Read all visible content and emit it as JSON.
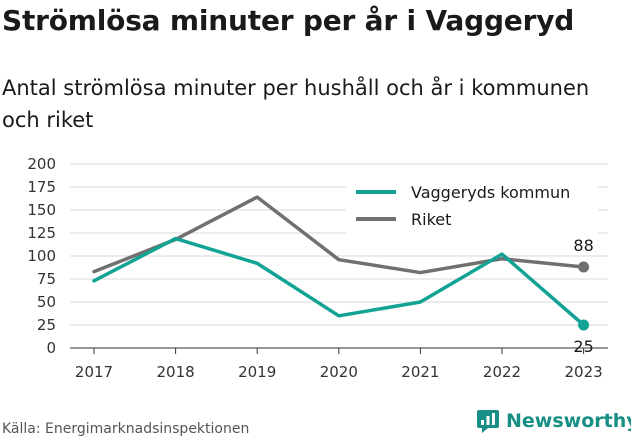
{
  "title": "Strömlösa minuter per år i Vaggeryd",
  "subtitle": "Antal strömlösa minuter per hushåll och år i kommunen och riket",
  "source": "Källa: Energimarknadsinspektionen",
  "brand": {
    "name": "Newsworthy",
    "icon": "newsworthy-logo-icon",
    "color": "#178f84"
  },
  "chart_data": {
    "type": "line",
    "x": [
      "2017",
      "2018",
      "2019",
      "2020",
      "2021",
      "2022",
      "2023"
    ],
    "y_ticks": [
      0,
      25,
      50,
      75,
      100,
      125,
      150,
      175,
      200
    ],
    "ylim": [
      0,
      200
    ],
    "grid": true,
    "legend_position": "top-right",
    "series": [
      {
        "name": "Vaggeryds kommun",
        "color": "#12a394",
        "values": [
          73,
          119,
          92,
          35,
          50,
          102,
          25
        ]
      },
      {
        "name": "Riket",
        "color": "#707070",
        "values": [
          83,
          118,
          164,
          96,
          82,
          97,
          88
        ]
      }
    ],
    "end_labels": [
      "25",
      "88"
    ]
  }
}
